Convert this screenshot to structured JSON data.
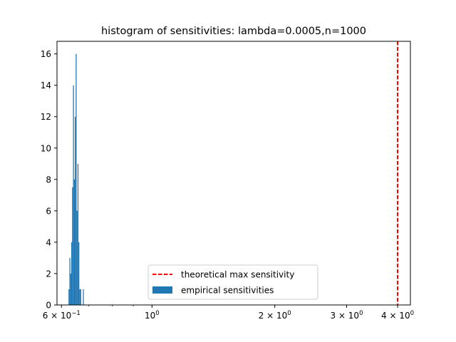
{
  "chart_data": {
    "type": "bar",
    "title": "histogram of sensitivities: lambda=0.0005,n=1000",
    "xlabel": "",
    "ylabel": "",
    "xscale": "log",
    "xlim": [
      0.585,
      4.3
    ],
    "ylim": [
      0,
      16.8
    ],
    "grid": false,
    "legend_position": "lower-center",
    "colors": {
      "bars": "#1f77b4",
      "vline": "#ff0000"
    },
    "x_tick_labels": [
      {
        "value": 0.6,
        "base": "6 × 10",
        "exp": "−1"
      },
      {
        "value": 1.0,
        "base": "10",
        "exp": "0"
      },
      {
        "value": 2.0,
        "base": "2 × 10",
        "exp": "0"
      },
      {
        "value": 3.0,
        "base": "3 × 10",
        "exp": "0"
      },
      {
        "value": 4.0,
        "base": "4 × 10",
        "exp": "0"
      }
    ],
    "y_ticks": [
      0,
      2,
      4,
      6,
      8,
      10,
      12,
      14,
      16
    ],
    "bins": [
      {
        "x0": 0.6243,
        "x1": 0.6275,
        "count": 1
      },
      {
        "x0": 0.6275,
        "x1": 0.6307,
        "count": 3
      },
      {
        "x0": 0.6307,
        "x1": 0.6339,
        "count": 2
      },
      {
        "x0": 0.6339,
        "x1": 0.6372,
        "count": 4
      },
      {
        "x0": 0.6372,
        "x1": 0.6404,
        "count": 7.5
      },
      {
        "x0": 0.6404,
        "x1": 0.6437,
        "count": 14
      },
      {
        "x0": 0.6437,
        "x1": 0.6469,
        "count": 8
      },
      {
        "x0": 0.6469,
        "x1": 0.6502,
        "count": 12
      },
      {
        "x0": 0.6502,
        "x1": 0.6535,
        "count": 16
      },
      {
        "x0": 0.6535,
        "x1": 0.6569,
        "count": 6
      },
      {
        "x0": 0.6569,
        "x1": 0.6602,
        "count": 9
      },
      {
        "x0": 0.6602,
        "x1": 0.6636,
        "count": 4
      },
      {
        "x0": 0.6636,
        "x1": 0.667,
        "count": 1
      },
      {
        "x0": 0.667,
        "x1": 0.6704,
        "count": 1
      },
      {
        "x0": 0.6704,
        "x1": 0.6738,
        "count": 0
      },
      {
        "x0": 0.6738,
        "x1": 0.6773,
        "count": 0
      },
      {
        "x0": 0.6773,
        "x1": 0.6807,
        "count": 1
      }
    ],
    "vline": {
      "x": 4.0,
      "style": "dashed"
    },
    "legend": [
      {
        "label": "theoretical max sensitivity",
        "kind": "line"
      },
      {
        "label": "empirical sensitivities",
        "kind": "patch"
      }
    ]
  }
}
